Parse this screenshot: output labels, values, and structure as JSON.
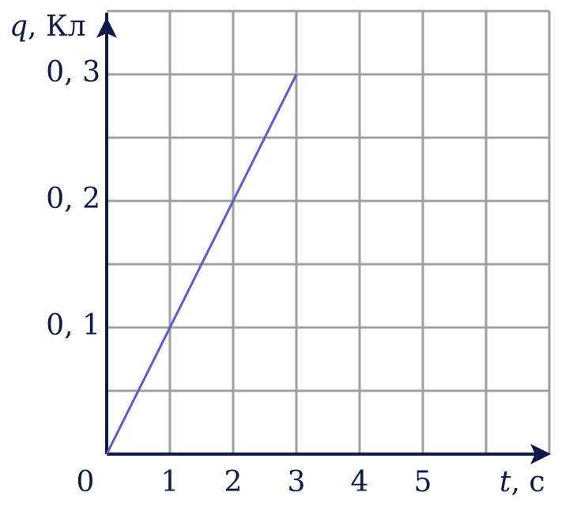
{
  "chart_data": {
    "type": "line",
    "ylabel_symbol": "q",
    "ylabel_rest": ", Кл",
    "xlabel_symbol": "t",
    "xlabel_rest": ", с",
    "x": [
      0,
      1,
      2,
      3
    ],
    "series": [
      {
        "color": "#5b5bd6",
        "values": [
          0,
          0.1,
          0.2,
          0.3
        ]
      }
    ],
    "xlim": [
      0,
      7
    ],
    "ylim": [
      0,
      0.35
    ],
    "xticks": [
      0,
      1,
      2,
      3,
      4,
      5
    ],
    "yticks": [
      {
        "value": 0.1,
        "label": "0, 1"
      },
      {
        "value": 0.2,
        "label": "0, 2"
      },
      {
        "value": 0.3,
        "label": "0, 3"
      }
    ],
    "xgrid": [
      1,
      2,
      3,
      4,
      5,
      6,
      7
    ],
    "ygrid": [
      0.05,
      0.1,
      0.15,
      0.2,
      0.25,
      0.3,
      0.35
    ],
    "grid": true,
    "axis_color": "#0d1a4a",
    "grid_color": "#a0a0a0"
  }
}
